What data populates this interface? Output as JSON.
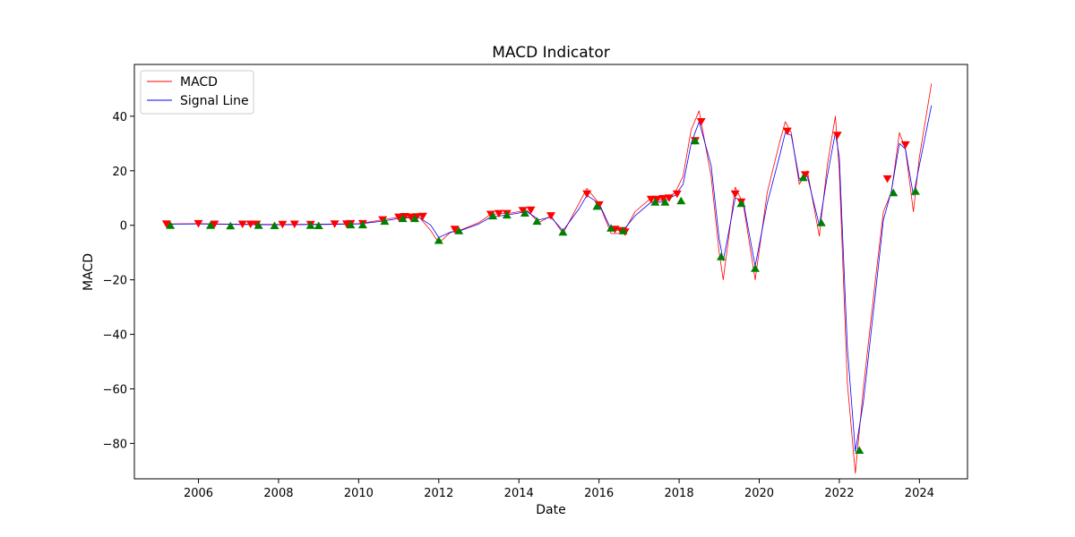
{
  "chart_data": {
    "type": "line",
    "title": "MACD Indicator",
    "xlabel": "Date",
    "ylabel": "MACD",
    "xlim": [
      2004.4,
      2025.2
    ],
    "ylim": [
      -93,
      59
    ],
    "x_ticks": [
      2006,
      2008,
      2010,
      2012,
      2014,
      2016,
      2018,
      2020,
      2022,
      2024
    ],
    "x_tick_labels": [
      "2006",
      "2008",
      "2010",
      "2012",
      "2014",
      "2016",
      "2018",
      "2020",
      "2022",
      "2024"
    ],
    "y_ticks": [
      -80,
      -60,
      -40,
      -20,
      0,
      20,
      40
    ],
    "y_tick_labels": [
      "−80",
      "−60",
      "−40",
      "−20",
      "0",
      "20",
      "40"
    ],
    "grid": false,
    "legend_position": "upper-left",
    "legend": [
      "MACD",
      "Signal Line"
    ],
    "colors": {
      "macd": "#ff0000",
      "signal": "#0000ff",
      "sell": "#ff0000",
      "buy": "#008000"
    },
    "series": [
      {
        "name": "MACD",
        "color": "#ff0000",
        "points": [
          [
            2005.2,
            0.5
          ],
          [
            2006.0,
            0.6
          ],
          [
            2007.0,
            0.4
          ],
          [
            2008.0,
            0.3
          ],
          [
            2009.0,
            0.4
          ],
          [
            2010.0,
            0.6
          ],
          [
            2010.6,
            2.0
          ],
          [
            2011.0,
            3.0
          ],
          [
            2011.5,
            3.2
          ],
          [
            2011.8,
            -2.0
          ],
          [
            2012.0,
            -6.5
          ],
          [
            2012.3,
            -2.5
          ],
          [
            2012.5,
            -2.0
          ],
          [
            2013.0,
            1.0
          ],
          [
            2013.3,
            4.0
          ],
          [
            2013.8,
            4.5
          ],
          [
            2014.2,
            5.5
          ],
          [
            2014.5,
            1.0
          ],
          [
            2014.8,
            3.5
          ],
          [
            2015.1,
            -3.0
          ],
          [
            2015.5,
            8.0
          ],
          [
            2015.7,
            13.5
          ],
          [
            2016.0,
            8.0
          ],
          [
            2016.3,
            -3.0
          ],
          [
            2016.6,
            -3.0
          ],
          [
            2016.9,
            5.0
          ],
          [
            2017.3,
            10.0
          ],
          [
            2017.6,
            9.0
          ],
          [
            2017.9,
            12.0
          ],
          [
            2018.1,
            18.0
          ],
          [
            2018.3,
            35.0
          ],
          [
            2018.5,
            42.0
          ],
          [
            2018.8,
            18.0
          ],
          [
            2019.0,
            -10.0
          ],
          [
            2019.1,
            -20.0
          ],
          [
            2019.4,
            14.0
          ],
          [
            2019.6,
            8.0
          ],
          [
            2019.9,
            -20.0
          ],
          [
            2020.2,
            12.0
          ],
          [
            2020.5,
            30.0
          ],
          [
            2020.65,
            38.0
          ],
          [
            2020.8,
            34.0
          ],
          [
            2021.0,
            15.0
          ],
          [
            2021.2,
            20.0
          ],
          [
            2021.5,
            -4.0
          ],
          [
            2021.7,
            22.0
          ],
          [
            2021.9,
            40.0
          ],
          [
            2022.0,
            20.0
          ],
          [
            2022.2,
            -58.0
          ],
          [
            2022.4,
            -91.0
          ],
          [
            2022.6,
            -60.0
          ],
          [
            2022.9,
            -20.0
          ],
          [
            2023.1,
            5.0
          ],
          [
            2023.3,
            12.0
          ],
          [
            2023.5,
            34.0
          ],
          [
            2023.65,
            28.0
          ],
          [
            2023.85,
            5.0
          ],
          [
            2024.0,
            25.0
          ],
          [
            2024.3,
            52.0
          ]
        ]
      },
      {
        "name": "Signal Line",
        "color": "#0000ff",
        "points": [
          [
            2005.2,
            0.4
          ],
          [
            2006.0,
            0.5
          ],
          [
            2007.0,
            0.3
          ],
          [
            2008.0,
            0.2
          ],
          [
            2009.0,
            0.3
          ],
          [
            2010.0,
            0.5
          ],
          [
            2010.6,
            1.5
          ],
          [
            2011.0,
            2.5
          ],
          [
            2011.5,
            3.0
          ],
          [
            2011.8,
            0.0
          ],
          [
            2012.0,
            -4.5
          ],
          [
            2012.3,
            -2.5
          ],
          [
            2012.5,
            -2.2
          ],
          [
            2013.0,
            0.5
          ],
          [
            2013.3,
            3.0
          ],
          [
            2013.8,
            4.0
          ],
          [
            2014.2,
            5.0
          ],
          [
            2014.5,
            2.0
          ],
          [
            2014.8,
            3.0
          ],
          [
            2015.1,
            -2.0
          ],
          [
            2015.5,
            6.0
          ],
          [
            2015.7,
            11.0
          ],
          [
            2016.0,
            8.0
          ],
          [
            2016.3,
            -1.5
          ],
          [
            2016.6,
            -2.0
          ],
          [
            2016.9,
            3.5
          ],
          [
            2017.3,
            8.5
          ],
          [
            2017.6,
            8.5
          ],
          [
            2017.9,
            11.0
          ],
          [
            2018.1,
            15.0
          ],
          [
            2018.3,
            30.0
          ],
          [
            2018.5,
            38.0
          ],
          [
            2018.8,
            22.0
          ],
          [
            2019.0,
            -5.0
          ],
          [
            2019.1,
            -13.0
          ],
          [
            2019.4,
            10.0
          ],
          [
            2019.6,
            9.0
          ],
          [
            2019.9,
            -15.0
          ],
          [
            2020.2,
            8.0
          ],
          [
            2020.5,
            25.0
          ],
          [
            2020.65,
            34.0
          ],
          [
            2020.8,
            33.0
          ],
          [
            2021.0,
            17.0
          ],
          [
            2021.2,
            18.0
          ],
          [
            2021.5,
            0.0
          ],
          [
            2021.7,
            18.0
          ],
          [
            2021.9,
            34.0
          ],
          [
            2022.0,
            25.0
          ],
          [
            2022.2,
            -45.0
          ],
          [
            2022.4,
            -83.0
          ],
          [
            2022.6,
            -65.0
          ],
          [
            2022.9,
            -25.0
          ],
          [
            2023.1,
            2.0
          ],
          [
            2023.3,
            12.5
          ],
          [
            2023.5,
            30.0
          ],
          [
            2023.65,
            28.0
          ],
          [
            2023.85,
            11.0
          ],
          [
            2024.0,
            22.0
          ],
          [
            2024.3,
            44.0
          ]
        ]
      }
    ],
    "markers": {
      "sell": [
        [
          2005.2,
          0.5
        ],
        [
          2006.0,
          0.6
        ],
        [
          2006.4,
          0.4
        ],
        [
          2007.1,
          0.4
        ],
        [
          2007.3,
          0.4
        ],
        [
          2007.45,
          0.4
        ],
        [
          2008.1,
          0.3
        ],
        [
          2008.4,
          0.4
        ],
        [
          2008.8,
          0.3
        ],
        [
          2009.4,
          0.5
        ],
        [
          2009.7,
          0.5
        ],
        [
          2009.8,
          0.6
        ],
        [
          2010.1,
          0.6
        ],
        [
          2010.6,
          2.0
        ],
        [
          2011.0,
          3.0
        ],
        [
          2011.15,
          3.2
        ],
        [
          2011.3,
          3.0
        ],
        [
          2011.45,
          3.1
        ],
        [
          2011.6,
          3.3
        ],
        [
          2012.4,
          -1.5
        ],
        [
          2013.3,
          4.0
        ],
        [
          2013.5,
          4.3
        ],
        [
          2013.7,
          4.3
        ],
        [
          2014.1,
          5.4
        ],
        [
          2014.3,
          5.6
        ],
        [
          2014.8,
          3.5
        ],
        [
          2015.7,
          11.5
        ],
        [
          2016.0,
          7.5
        ],
        [
          2016.4,
          -1.5
        ],
        [
          2016.55,
          -2.0
        ],
        [
          2016.65,
          -2.5
        ],
        [
          2017.3,
          9.5
        ],
        [
          2017.45,
          9.5
        ],
        [
          2017.6,
          9.8
        ],
        [
          2017.75,
          10.0
        ],
        [
          2017.95,
          11.5
        ],
        [
          2018.4,
          31.0
        ],
        [
          2018.55,
          38.0
        ],
        [
          2019.4,
          11.5
        ],
        [
          2019.55,
          8.5
        ],
        [
          2020.7,
          34.5
        ],
        [
          2021.15,
          18.5
        ],
        [
          2021.95,
          33.0
        ],
        [
          2023.2,
          17.0
        ],
        [
          2023.65,
          29.5
        ]
      ],
      "buy": [
        [
          2005.3,
          0.0
        ],
        [
          2006.3,
          0.0
        ],
        [
          2006.8,
          -0.2
        ],
        [
          2007.5,
          0.0
        ],
        [
          2007.9,
          -0.1
        ],
        [
          2008.8,
          0.0
        ],
        [
          2009.0,
          -0.1
        ],
        [
          2009.8,
          0.2
        ],
        [
          2010.1,
          0.2
        ],
        [
          2010.65,
          1.5
        ],
        [
          2011.1,
          2.5
        ],
        [
          2011.4,
          2.5
        ],
        [
          2012.0,
          -5.5
        ],
        [
          2012.5,
          -2.0
        ],
        [
          2013.35,
          3.5
        ],
        [
          2013.7,
          3.8
        ],
        [
          2014.15,
          4.5
        ],
        [
          2014.45,
          1.5
        ],
        [
          2015.1,
          -2.5
        ],
        [
          2015.95,
          7.0
        ],
        [
          2016.3,
          -1.0
        ],
        [
          2016.6,
          -2.0
        ],
        [
          2017.4,
          8.5
        ],
        [
          2017.65,
          8.5
        ],
        [
          2018.05,
          9.0
        ],
        [
          2018.4,
          31.0
        ],
        [
          2019.05,
          -11.5
        ],
        [
          2019.55,
          8.0
        ],
        [
          2019.9,
          -15.8
        ],
        [
          2021.1,
          17.5
        ],
        [
          2021.55,
          1.0
        ],
        [
          2022.5,
          -82.5
        ],
        [
          2023.35,
          12.0
        ],
        [
          2023.9,
          12.5
        ]
      ]
    }
  }
}
